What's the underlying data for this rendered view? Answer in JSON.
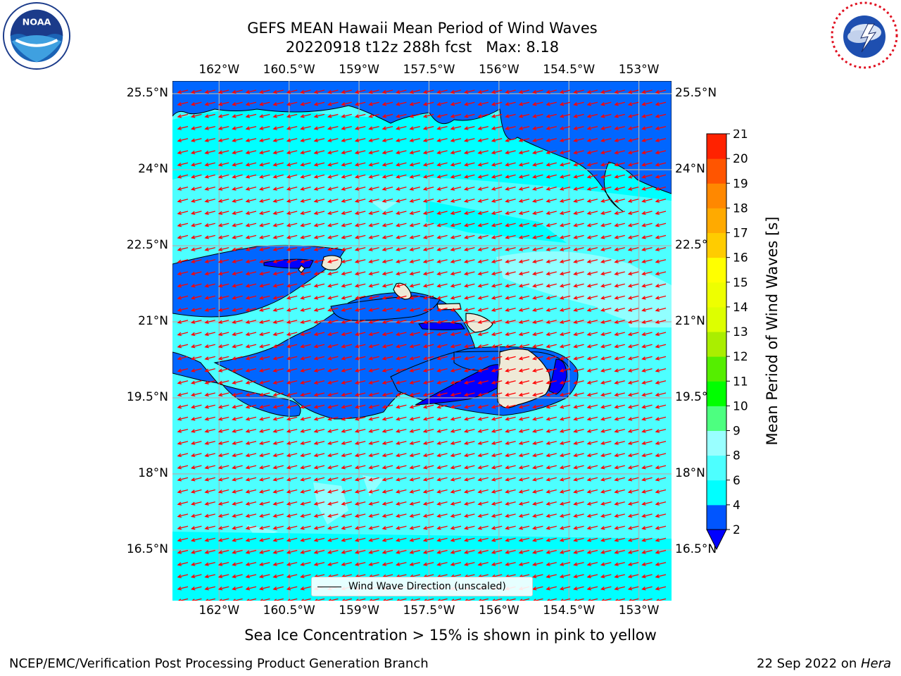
{
  "header": {
    "title_line1": "GEFS MEAN Hawaii Mean Period of Wind Waves",
    "title_line2": "20220918 t12z 288h fcst   Max: 8.18"
  },
  "logos": {
    "left": "noaa-logo",
    "right": "national-weather-service-logo"
  },
  "axes": {
    "lon_ticks": [
      "162°W",
      "160.5°W",
      "159°W",
      "157.5°W",
      "156°W",
      "154.5°W",
      "153°W"
    ],
    "lat_ticks": [
      "25.5°N",
      "24°N",
      "22.5°N",
      "21°N",
      "19.5°N",
      "18°N",
      "16.5°N"
    ],
    "lon_range": [
      -163.0,
      -152.3
    ],
    "lat_range": [
      15.5,
      25.75
    ]
  },
  "legend": {
    "label": "Wind Wave Direction (unscaled)"
  },
  "colorbar": {
    "title": "Mean Period of Wind Waves [s]",
    "ticks": [
      "2",
      "4",
      "6",
      "8",
      "9",
      "10",
      "11",
      "12",
      "13",
      "14",
      "15",
      "16",
      "17",
      "18",
      "19",
      "20",
      "21"
    ],
    "colors": [
      "#0055ff",
      "#00ffff",
      "#4dffff",
      "#99ffff",
      "#4dff80",
      "#00ff00",
      "#55ee00",
      "#aaee00",
      "#ddff00",
      "#eeff00",
      "#ffff00",
      "#ffcc00",
      "#ffaa00",
      "#ff8800",
      "#ff5500",
      "#ff2200"
    ],
    "extend_color": "#0000ff"
  },
  "chart_data": {
    "type": "heatmap",
    "title": "GEFS MEAN Hawaii Mean Period of Wind Waves",
    "variable": "Mean Period of Wind Waves [s]",
    "max": 8.18,
    "run": "20220918 t12z",
    "forecast_hour": "288h",
    "dominant_values": "2–8 s; mostly 6–8 s (cyan), 2–4 s bands (blue) in the north and in the island channels, below 2 s lee of the Big Island",
    "arrow_direction": "toward the west-southwest",
    "colors": {
      "ocean_6_8": "#4dffff",
      "ocean_4_6": "#00ffff",
      "ocean_2_4": "#0066ff",
      "below_2": "#0000ff",
      "light_8": "#99ffff",
      "land": "#efead7",
      "arrows": "#ff0000"
    }
  },
  "note": "Sea Ice Concentration > 15% is shown in pink to yellow",
  "footer": {
    "left": "NCEP/EMC/Verification Post Processing Product Generation Branch",
    "date": "22 Sep 2022 on ",
    "machine": "Hera"
  }
}
